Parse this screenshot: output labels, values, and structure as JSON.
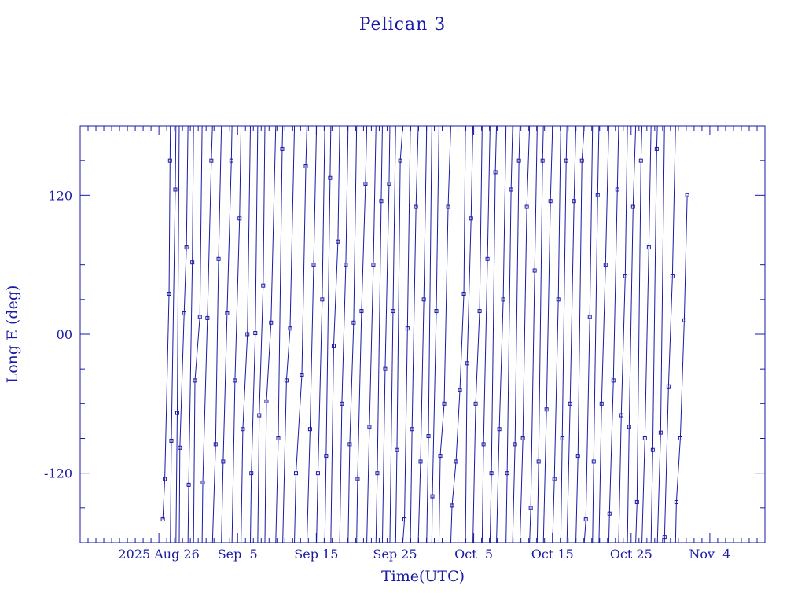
{
  "colors": {
    "ink": "#1a1aa6",
    "background": "#ffffff"
  },
  "chart_data": {
    "type": "line",
    "title": "Pelican 3",
    "xlabel": "Time(UTC)",
    "ylabel": "Long E (deg)",
    "grid": false,
    "xlim": [
      "2025-08-16",
      "2025-11-11"
    ],
    "ylim": [
      -180,
      180
    ],
    "x_tick_labels": [
      "2025 Aug 26",
      "Sep  5",
      "Sep 15",
      "Sep 25",
      "Oct  5",
      "Oct 15",
      "Oct 25",
      "Nov  4"
    ],
    "x_tick_dates": [
      "2025-08-26",
      "2025-09-05",
      "2025-09-15",
      "2025-09-25",
      "2025-10-05",
      "2025-10-15",
      "2025-10-25",
      "2025-11-04"
    ],
    "y_tick_labels": [
      "-120",
      "00",
      "120"
    ],
    "y_tick_values": [
      -120,
      0,
      120
    ],
    "series": [
      {
        "marker": "square",
        "wrap_period": 360,
        "points": [
          [
            "2025-08-26T12:00",
            -160
          ],
          [
            "2025-08-26T18:00",
            -125
          ],
          [
            "2025-08-27T07:00",
            35
          ],
          [
            "2025-08-27T10:00",
            150
          ],
          [
            "2025-08-27T14:00",
            -92
          ],
          [
            "2025-08-28T02:00",
            125
          ],
          [
            "2025-08-28T08:00",
            -68
          ],
          [
            "2025-08-28T16:00",
            -98
          ],
          [
            "2025-08-29T05:00",
            18
          ],
          [
            "2025-08-29T12:00",
            75
          ],
          [
            "2025-08-29T19:00",
            -130
          ],
          [
            "2025-08-30T06:00",
            62
          ],
          [
            "2025-08-30T14:00",
            -40
          ],
          [
            "2025-08-31T05:00",
            15
          ],
          [
            "2025-08-31T14:00",
            -128
          ],
          [
            "2025-09-01T04:00",
            14
          ],
          [
            "2025-09-01T16:00",
            150
          ],
          [
            "2025-09-02T05:00",
            -95
          ],
          [
            "2025-09-02T14:00",
            65
          ],
          [
            "2025-09-03T04:00",
            -110
          ],
          [
            "2025-09-03T16:00",
            18
          ],
          [
            "2025-09-04T05:00",
            150
          ],
          [
            "2025-09-04T16:00",
            -40
          ],
          [
            "2025-09-05T06:00",
            100
          ],
          [
            "2025-09-05T16:00",
            -82
          ],
          [
            "2025-09-06T06:00",
            0
          ],
          [
            "2025-09-06T18:00",
            -120
          ],
          [
            "2025-09-07T06:00",
            1
          ],
          [
            "2025-09-07T18:00",
            -70
          ],
          [
            "2025-09-08T06:00",
            42
          ],
          [
            "2025-09-08T16:00",
            -58
          ],
          [
            "2025-09-09T06:00",
            10
          ],
          [
            "2025-09-10T04:00",
            -90
          ],
          [
            "2025-09-10T16:00",
            160
          ],
          [
            "2025-09-11T05:00",
            -40
          ],
          [
            "2025-09-11T16:00",
            5
          ],
          [
            "2025-09-12T10:00",
            -120
          ],
          [
            "2025-09-13T04:00",
            -35
          ],
          [
            "2025-09-13T16:00",
            145
          ],
          [
            "2025-09-14T05:00",
            -82
          ],
          [
            "2025-09-14T16:00",
            60
          ],
          [
            "2025-09-15T05:00",
            -120
          ],
          [
            "2025-09-15T18:00",
            30
          ],
          [
            "2025-09-16T06:00",
            -105
          ],
          [
            "2025-09-16T18:00",
            135
          ],
          [
            "2025-09-17T05:00",
            -10
          ],
          [
            "2025-09-17T18:00",
            80
          ],
          [
            "2025-09-18T06:00",
            -60
          ],
          [
            "2025-09-18T18:00",
            60
          ],
          [
            "2025-09-19T06:00",
            -95
          ],
          [
            "2025-09-19T18:00",
            10
          ],
          [
            "2025-09-20T06:00",
            -125
          ],
          [
            "2025-09-20T18:00",
            20
          ],
          [
            "2025-09-21T06:00",
            130
          ],
          [
            "2025-09-21T18:00",
            -80
          ],
          [
            "2025-09-22T06:00",
            60
          ],
          [
            "2025-09-22T18:00",
            -120
          ],
          [
            "2025-09-23T06:00",
            115
          ],
          [
            "2025-09-23T18:00",
            -30
          ],
          [
            "2025-09-24T06:00",
            130
          ],
          [
            "2025-09-24T18:00",
            20
          ],
          [
            "2025-09-25T06:00",
            -100
          ],
          [
            "2025-09-25T16:00",
            150
          ],
          [
            "2025-09-26T05:00",
            -160
          ],
          [
            "2025-09-26T14:00",
            5
          ],
          [
            "2025-09-27T04:00",
            -82
          ],
          [
            "2025-09-27T16:00",
            110
          ],
          [
            "2025-09-28T06:00",
            -110
          ],
          [
            "2025-09-28T16:00",
            30
          ],
          [
            "2025-09-29T06:00",
            -88
          ],
          [
            "2025-09-29T18:00",
            -140
          ],
          [
            "2025-09-30T06:00",
            20
          ],
          [
            "2025-09-30T18:00",
            -105
          ],
          [
            "2025-10-01T06:00",
            -60
          ],
          [
            "2025-10-01T18:00",
            110
          ],
          [
            "2025-10-02T06:00",
            -148
          ],
          [
            "2025-10-02T18:00",
            -110
          ],
          [
            "2025-10-03T06:00",
            -48
          ],
          [
            "2025-10-03T18:00",
            35
          ],
          [
            "2025-10-04T04:00",
            -25
          ],
          [
            "2025-10-04T16:00",
            100
          ],
          [
            "2025-10-05T06:00",
            -60
          ],
          [
            "2025-10-05T18:00",
            20
          ],
          [
            "2025-10-06T06:00",
            -95
          ],
          [
            "2025-10-06T18:00",
            65
          ],
          [
            "2025-10-07T06:00",
            -120
          ],
          [
            "2025-10-07T18:00",
            140
          ],
          [
            "2025-10-08T06:00",
            -82
          ],
          [
            "2025-10-08T18:00",
            30
          ],
          [
            "2025-10-09T06:00",
            -120
          ],
          [
            "2025-10-09T18:00",
            125
          ],
          [
            "2025-10-10T06:00",
            -95
          ],
          [
            "2025-10-10T18:00",
            150
          ],
          [
            "2025-10-11T06:00",
            -90
          ],
          [
            "2025-10-11T18:00",
            110
          ],
          [
            "2025-10-12T06:00",
            -150
          ],
          [
            "2025-10-12T18:00",
            55
          ],
          [
            "2025-10-13T06:00",
            -110
          ],
          [
            "2025-10-13T18:00",
            150
          ],
          [
            "2025-10-14T06:00",
            -65
          ],
          [
            "2025-10-14T18:00",
            115
          ],
          [
            "2025-10-15T06:00",
            -125
          ],
          [
            "2025-10-15T18:00",
            30
          ],
          [
            "2025-10-16T06:00",
            -90
          ],
          [
            "2025-10-16T18:00",
            150
          ],
          [
            "2025-10-17T06:00",
            -60
          ],
          [
            "2025-10-17T18:00",
            115
          ],
          [
            "2025-10-18T06:00",
            -105
          ],
          [
            "2025-10-18T18:00",
            150
          ],
          [
            "2025-10-19T06:00",
            -160
          ],
          [
            "2025-10-19T18:00",
            15
          ],
          [
            "2025-10-20T06:00",
            -110
          ],
          [
            "2025-10-20T18:00",
            120
          ],
          [
            "2025-10-21T06:00",
            -60
          ],
          [
            "2025-10-21T18:00",
            60
          ],
          [
            "2025-10-22T06:00",
            -155
          ],
          [
            "2025-10-22T18:00",
            -40
          ],
          [
            "2025-10-23T06:00",
            125
          ],
          [
            "2025-10-23T18:00",
            -70
          ],
          [
            "2025-10-24T06:00",
            50
          ],
          [
            "2025-10-24T18:00",
            -80
          ],
          [
            "2025-10-25T06:00",
            110
          ],
          [
            "2025-10-25T18:00",
            -145
          ],
          [
            "2025-10-26T06:00",
            150
          ],
          [
            "2025-10-26T18:00",
            -90
          ],
          [
            "2025-10-27T06:00",
            75
          ],
          [
            "2025-10-27T18:00",
            -100
          ],
          [
            "2025-10-28T06:00",
            160
          ],
          [
            "2025-10-28T18:00",
            -85
          ],
          [
            "2025-10-29T06:00",
            -175
          ],
          [
            "2025-10-29T18:00",
            -45
          ],
          [
            "2025-10-30T06:00",
            50
          ],
          [
            "2025-10-30T18:00",
            -145
          ],
          [
            "2025-10-31T06:00",
            -90
          ],
          [
            "2025-10-31T18:00",
            12
          ],
          [
            "2025-11-01T03:00",
            120
          ]
        ]
      }
    ]
  }
}
